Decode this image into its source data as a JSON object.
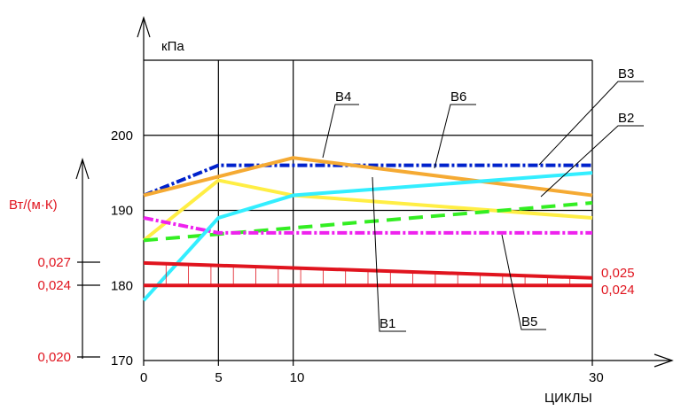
{
  "chart_data": {
    "type": "line",
    "xlabel": "ЦИКЛЫ",
    "x_ticks": [
      "0",
      "5",
      "10",
      "30"
    ],
    "x_tick_values": [
      0,
      5,
      10,
      30
    ],
    "y_left": {
      "label": "кПа",
      "ticks": [
        "170",
        "180",
        "190",
        "200"
      ],
      "tick_values": [
        170,
        180,
        190,
        200
      ],
      "range": [
        170,
        210
      ]
    },
    "y_conductivity": {
      "label": "Вт/(м·К)",
      "ticks": [
        "0,027",
        "0,024",
        "0,020"
      ],
      "tick_values": [
        0.027,
        0.024,
        0.02
      ]
    },
    "series": [
      {
        "name": "В1",
        "color": "#ffee44",
        "style": "solid",
        "x": [
          0,
          5,
          10,
          30
        ],
        "y": [
          186,
          194,
          192,
          189
        ]
      },
      {
        "name": "В2",
        "color": "#33ee22",
        "style": "dashed",
        "x": [
          0,
          30
        ],
        "y": [
          186,
          191
        ]
      },
      {
        "name": "В3",
        "color": "#0022cc",
        "style": "dashdot",
        "x": [
          0,
          5,
          30
        ],
        "y": [
          192,
          196,
          196
        ]
      },
      {
        "name": "В4",
        "color": "#f5aa33",
        "style": "solid",
        "x": [
          0,
          10,
          30
        ],
        "y": [
          192,
          197,
          192
        ]
      },
      {
        "name": "В5",
        "color": "#ee22ee",
        "style": "dashdot",
        "x": [
          0,
          5,
          30
        ],
        "y": [
          189,
          187,
          187
        ]
      },
      {
        "name": "В6",
        "color": "#33eeff",
        "style": "solid",
        "x": [
          0,
          5,
          10,
          30
        ],
        "y": [
          178,
          189,
          192,
          195
        ]
      }
    ],
    "conductivity_lines": [
      {
        "label": "0,025",
        "color": "#e0141e",
        "x": [
          0,
          30
        ],
        "y": [
          183,
          181
        ]
      },
      {
        "label": "0,024",
        "color": "#e0141e",
        "x": [
          0,
          30
        ],
        "y": [
          180,
          180
        ]
      }
    ]
  }
}
